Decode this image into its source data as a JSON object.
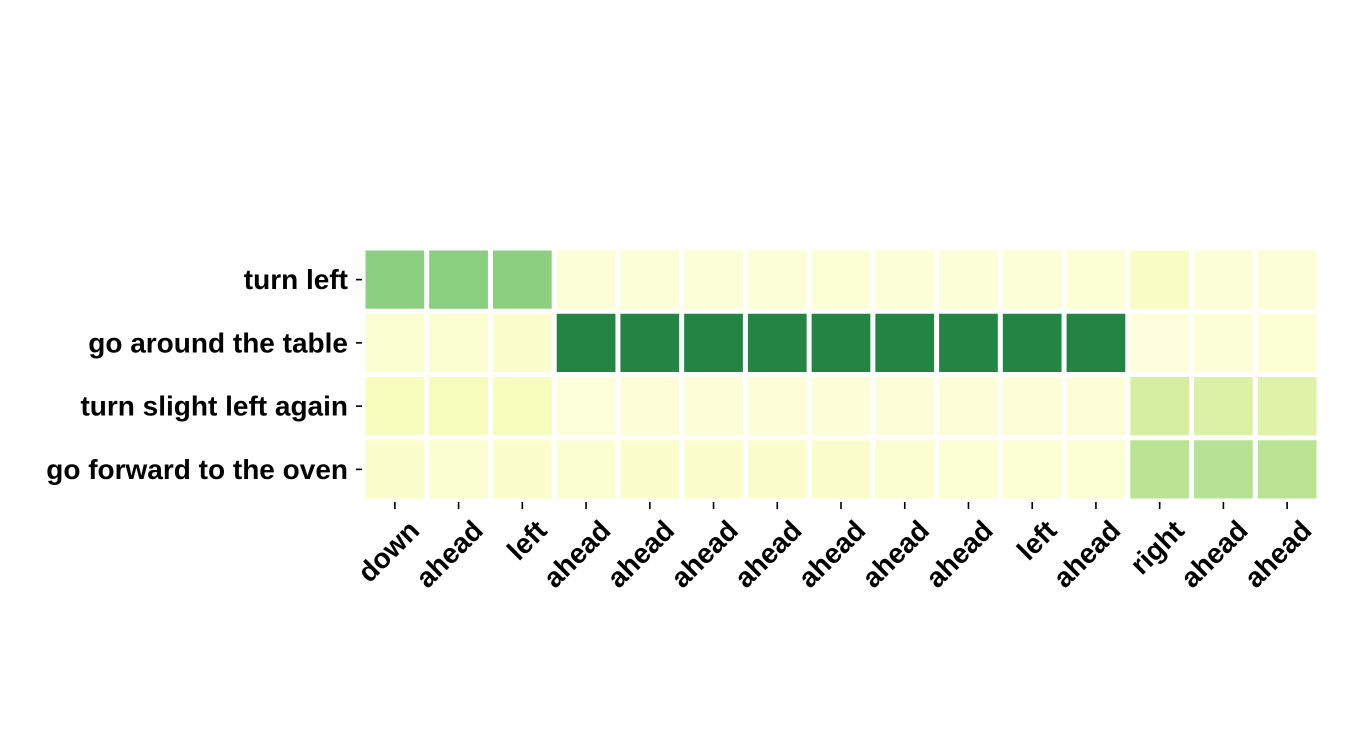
{
  "chart_data": {
    "type": "heatmap",
    "title": "",
    "xlabel": "",
    "ylabel": "",
    "rows": [
      "turn left",
      "go around the table",
      "turn slight left again",
      "go forward to the oven"
    ],
    "columns": [
      "down",
      "ahead",
      "left",
      "ahead",
      "ahead",
      "ahead",
      "ahead",
      "ahead",
      "ahead",
      "ahead",
      "left",
      "ahead",
      "right",
      "ahead",
      "ahead"
    ],
    "values": [
      [
        0.6,
        0.61,
        0.6,
        0.06,
        0.06,
        0.06,
        0.06,
        0.07,
        0.06,
        0.06,
        0.06,
        0.07,
        0.12,
        0.06,
        0.06
      ],
      [
        0.08,
        0.08,
        0.09,
        1.0,
        1.0,
        1.0,
        1.0,
        1.0,
        1.0,
        1.0,
        1.0,
        1.0,
        0.03,
        0.06,
        0.07
      ],
      [
        0.15,
        0.17,
        0.15,
        0.04,
        0.05,
        0.05,
        0.05,
        0.05,
        0.05,
        0.05,
        0.05,
        0.05,
        0.35,
        0.32,
        0.3
      ],
      [
        0.09,
        0.08,
        0.09,
        0.08,
        0.09,
        0.09,
        0.09,
        0.1,
        0.08,
        0.07,
        0.07,
        0.07,
        0.45,
        0.46,
        0.45
      ]
    ],
    "value_range": [
      0,
      1
    ],
    "colormap": [
      "#ffffe5",
      "#f7fcb9",
      "#d9f0a3",
      "#addd8e",
      "#78c679",
      "#41ab5d",
      "#238443"
    ],
    "grid": false,
    "legend": "none"
  }
}
